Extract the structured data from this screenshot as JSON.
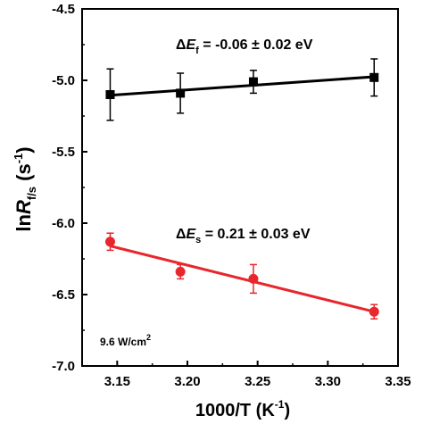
{
  "chart_data": {
    "type": "scatter",
    "xlabel": {
      "main": "1000/T (K",
      "sup": "-1",
      "end": ")"
    },
    "ylabel": {
      "pre": "ln",
      "italic": "R",
      "sub": "f/s",
      "unit": " (s",
      "sup": "-1",
      "end": ")"
    },
    "xlim": [
      3.125,
      3.35
    ],
    "ylim": [
      -7.0,
      -4.5
    ],
    "xticks": [
      3.15,
      3.2,
      3.25,
      3.3,
      3.35
    ],
    "xtick_labels": [
      "3.15",
      "3.20",
      "3.25",
      "3.30",
      "3.35"
    ],
    "yticks": [
      -4.5,
      -5.0,
      -5.5,
      -6.0,
      -6.5,
      -7.0
    ],
    "ytick_labels": [
      "-4.5",
      "-5.0",
      "-5.5",
      "-6.0",
      "-6.5",
      "-7.0"
    ],
    "grid": false,
    "series": [
      {
        "color": "#000000",
        "marker": "square",
        "x": [
          3.145,
          3.195,
          3.247,
          3.333
        ],
        "y": [
          -5.1,
          -5.09,
          -5.01,
          -4.98
        ],
        "err": [
          0.18,
          0.14,
          0.08,
          0.13
        ],
        "fit": {
          "x": [
            3.145,
            3.333
          ],
          "y": [
            -5.105,
            -4.975
          ]
        }
      },
      {
        "color": "#e8262c",
        "marker": "circle",
        "x": [
          3.145,
          3.195,
          3.247,
          3.333
        ],
        "y": [
          -6.13,
          -6.34,
          -6.39,
          -6.62
        ],
        "err": [
          0.06,
          0.05,
          0.1,
          0.05
        ],
        "fit": {
          "x": [
            3.145,
            3.333
          ],
          "y": [
            -6.16,
            -6.62
          ]
        }
      }
    ],
    "annotations": {
      "ef": {
        "delta": "Δ",
        "E": "E",
        "sub": "f",
        "text": " = -0.06 ± 0.02  eV"
      },
      "es": {
        "delta": "Δ",
        "E": "E",
        "sub": "s",
        "text": " = 0.21 ± 0.03 eV"
      },
      "power": {
        "text": "9.6 W/cm",
        "sup": "2"
      }
    }
  }
}
